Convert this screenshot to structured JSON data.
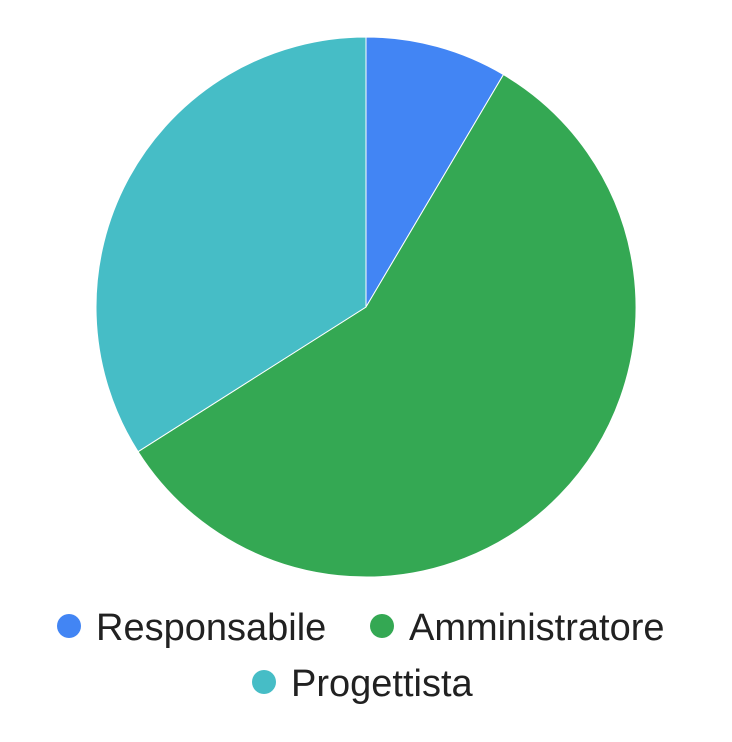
{
  "chart_data": {
    "type": "pie",
    "title": "",
    "categories": [
      "Responsabile",
      "Amministratore",
      "Progettista"
    ],
    "values": [
      8.5,
      57.5,
      34
    ],
    "colors": [
      "#4285f4",
      "#34a853",
      "#46bdc6"
    ],
    "start_angle_deg": 0,
    "direction": "clockwise",
    "legend_position": "bottom",
    "show_slice_labels": false
  }
}
